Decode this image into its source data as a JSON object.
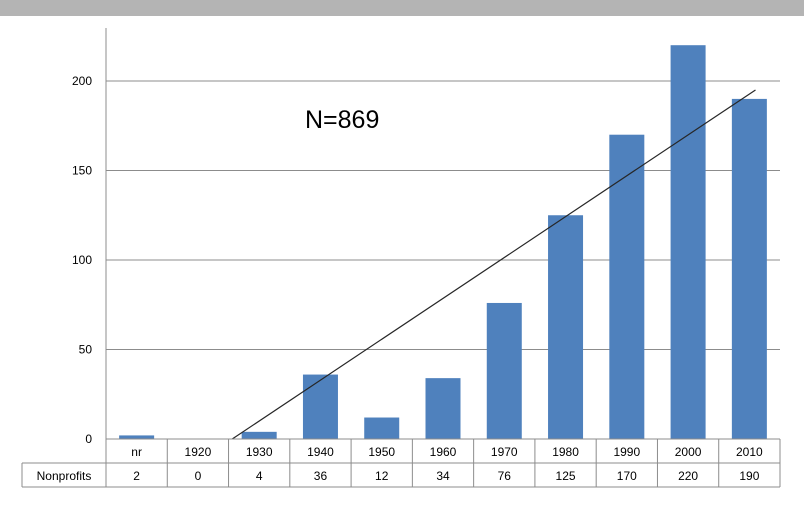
{
  "chart_data": {
    "type": "bar",
    "categories": [
      "nr",
      "1920",
      "1930",
      "1940",
      "1950",
      "1960",
      "1970",
      "1980",
      "1990",
      "2000",
      "2010"
    ],
    "series": [
      {
        "name": "Nonprofits",
        "values": [
          2,
          0,
          4,
          36,
          12,
          34,
          76,
          125,
          170,
          220,
          190
        ]
      }
    ],
    "ylim": [
      0,
      220
    ],
    "yticks": [
      0,
      50,
      100,
      150,
      200
    ],
    "grid": true,
    "annotation": "N=869",
    "trendline": {
      "type": "linear",
      "from_value": 0,
      "to_value": 195
    },
    "data_table": true,
    "colors": {
      "bar": "#4f81bd",
      "grid": "#8c8c8c",
      "axis": "#8c8c8c",
      "trendline": "#262626",
      "topbar": "#b4b4b4"
    }
  }
}
